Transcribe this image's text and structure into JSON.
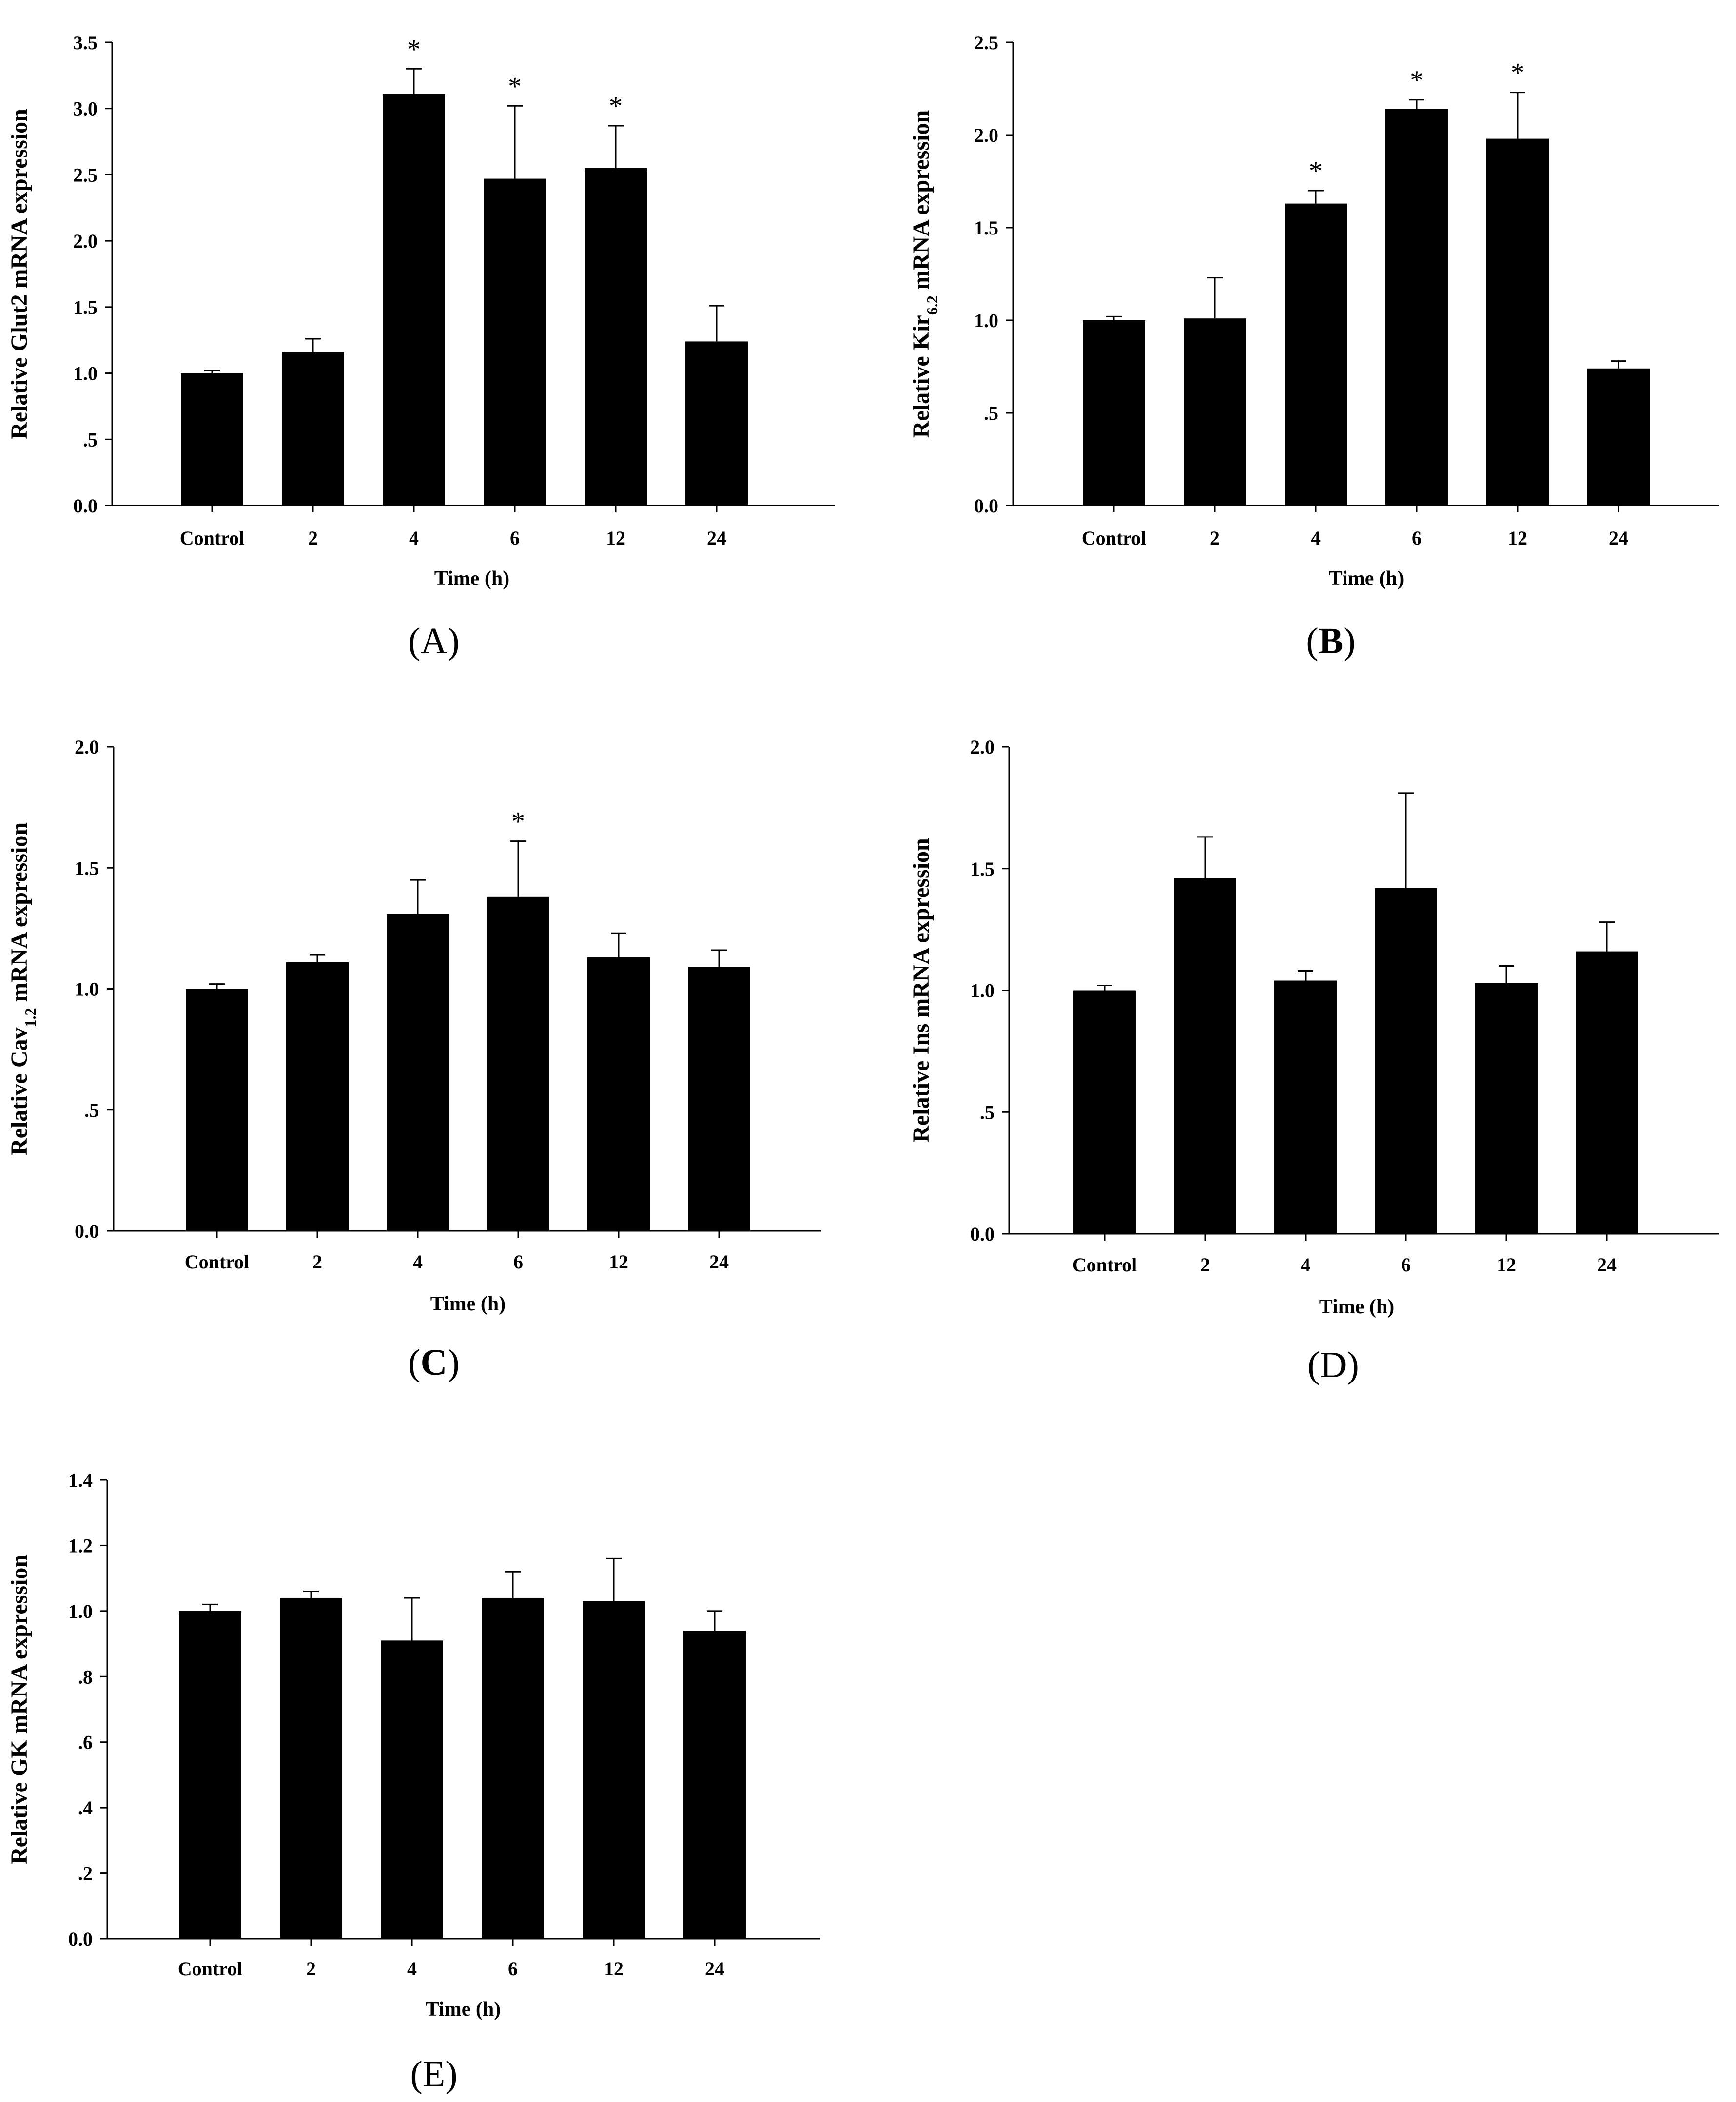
{
  "chart_data": [
    {
      "id": "A",
      "type": "bar",
      "panel_label": "A",
      "panel_bold": false,
      "ylabel": "Relative Glut2 mRNA expression",
      "ylabel_parts": [
        {
          "text": "Relative Glut2 mRNA expression",
          "sub": false
        }
      ],
      "xlabel": "Time (h)",
      "categories": [
        "Control",
        "2",
        "4",
        "6",
        "12",
        "24"
      ],
      "values": [
        1.0,
        1.16,
        3.11,
        2.47,
        2.55,
        1.24
      ],
      "errors": [
        0.02,
        0.1,
        0.19,
        0.55,
        0.32,
        0.27
      ],
      "significant": [
        false,
        false,
        true,
        true,
        true,
        false
      ],
      "ylim": [
        0,
        3.5
      ],
      "ticks": [
        0,
        0.5,
        1.0,
        1.5,
        2.0,
        2.5,
        3.0,
        3.5
      ],
      "tick_labels": [
        "0.0",
        ".5",
        "1.0",
        "1.5",
        "2.0",
        "2.5",
        "3.0",
        "3.5"
      ]
    },
    {
      "id": "B",
      "type": "bar",
      "panel_label": "B",
      "panel_bold": true,
      "ylabel": "Relative Kir6.2 mRNA expression",
      "ylabel_parts": [
        {
          "text": "Relative Kir",
          "sub": false
        },
        {
          "text": "6.2",
          "sub": true
        },
        {
          "text": " mRNA expression",
          "sub": false
        }
      ],
      "xlabel": "Time (h)",
      "categories": [
        "Control",
        "2",
        "4",
        "6",
        "12",
        "24"
      ],
      "values": [
        1.0,
        1.01,
        1.63,
        2.14,
        1.98,
        0.74
      ],
      "errors": [
        0.02,
        0.22,
        0.07,
        0.05,
        0.25,
        0.04
      ],
      "significant": [
        false,
        false,
        true,
        true,
        true,
        false
      ],
      "ylim": [
        0,
        2.5
      ],
      "ticks": [
        0,
        0.5,
        1.0,
        1.5,
        2.0,
        2.5
      ],
      "tick_labels": [
        "0.0",
        ".5",
        "1.0",
        "1.5",
        "2.0",
        "2.5"
      ]
    },
    {
      "id": "C",
      "type": "bar",
      "panel_label": "C",
      "panel_bold": true,
      "ylabel": "Relative Cav1.2 mRNA expression",
      "ylabel_parts": [
        {
          "text": "Relative Cav",
          "sub": false
        },
        {
          "text": "1.2",
          "sub": true
        },
        {
          "text": " mRNA expression",
          "sub": false
        }
      ],
      "xlabel": "Time (h)",
      "categories": [
        "Control",
        "2",
        "4",
        "6",
        "12",
        "24"
      ],
      "values": [
        1.0,
        1.11,
        1.31,
        1.38,
        1.13,
        1.09
      ],
      "errors": [
        0.02,
        0.03,
        0.14,
        0.23,
        0.1,
        0.07
      ],
      "significant": [
        false,
        false,
        false,
        true,
        false,
        false
      ],
      "ylim": [
        0,
        2.0
      ],
      "ticks": [
        0,
        0.5,
        1.0,
        1.5,
        2.0
      ],
      "tick_labels": [
        "0.0",
        ".5",
        "1.0",
        "1.5",
        "2.0"
      ]
    },
    {
      "id": "D",
      "type": "bar",
      "panel_label": "D",
      "panel_bold": false,
      "ylabel": "Relative Ins mRNA expression",
      "ylabel_parts": [
        {
          "text": "Relative Ins mRNA expression",
          "sub": false
        }
      ],
      "xlabel": "Time (h)",
      "categories": [
        "Control",
        "2",
        "4",
        "6",
        "12",
        "24"
      ],
      "values": [
        1.0,
        1.46,
        1.04,
        1.42,
        1.03,
        1.16
      ],
      "errors": [
        0.02,
        0.17,
        0.04,
        0.39,
        0.07,
        0.12
      ],
      "significant": [
        false,
        false,
        false,
        false,
        false,
        false
      ],
      "ylim": [
        0,
        2.0
      ],
      "ticks": [
        0,
        0.5,
        1.0,
        1.5,
        2.0
      ],
      "tick_labels": [
        "0.0",
        ".5",
        "1.0",
        "1.5",
        "2.0"
      ]
    },
    {
      "id": "E",
      "type": "bar",
      "panel_label": "E",
      "panel_bold": false,
      "ylabel": "Relative GK mRNA expression",
      "ylabel_parts": [
        {
          "text": "Relative GK mRNA expression",
          "sub": false
        }
      ],
      "xlabel": "Time (h)",
      "categories": [
        "Control",
        "2",
        "4",
        "6",
        "12",
        "24"
      ],
      "values": [
        1.0,
        1.04,
        0.91,
        1.04,
        1.03,
        0.94
      ],
      "errors": [
        0.02,
        0.02,
        0.13,
        0.08,
        0.13,
        0.06
      ],
      "significant": [
        false,
        false,
        false,
        false,
        false,
        false
      ],
      "ylim": [
        0,
        1.4
      ],
      "ticks": [
        0,
        0.2,
        0.4,
        0.6,
        0.8,
        1.0,
        1.2,
        1.4
      ],
      "tick_labels": [
        "0.0",
        ".2",
        ".4",
        ".6",
        ".8",
        "1.0",
        "1.2",
        "1.4"
      ]
    }
  ],
  "significance_marker": "*",
  "bar_color": "#000000"
}
